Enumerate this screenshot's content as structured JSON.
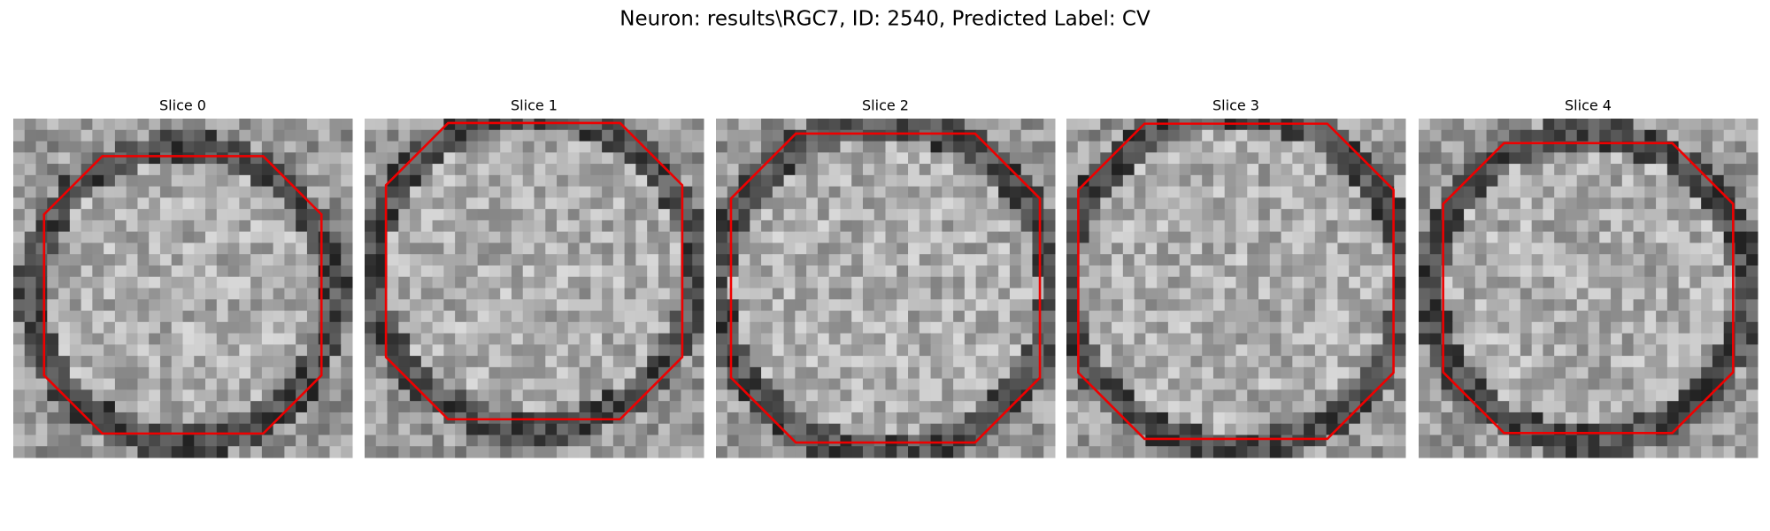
{
  "title": "Neuron: results\\RGC7, ID: 2540, Predicted Label: CV",
  "panels": [
    {
      "title": "Slice 0"
    },
    {
      "title": "Slice 1"
    },
    {
      "title": "Slice 2"
    },
    {
      "title": "Slice 3"
    },
    {
      "title": "Slice 4"
    }
  ]
}
